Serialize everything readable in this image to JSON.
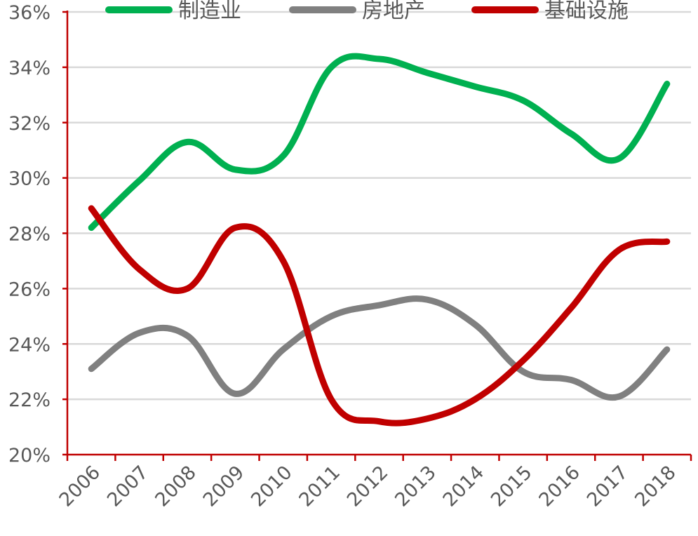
{
  "chart_data": {
    "type": "line",
    "title": "",
    "xlabel": "",
    "ylabel": "",
    "categories": [
      "2006",
      "2007",
      "2008",
      "2009",
      "2010",
      "2011",
      "2012",
      "2013",
      "2014",
      "2015",
      "2016",
      "2017",
      "2018"
    ],
    "ylim": [
      20,
      36
    ],
    "y_ticks": [
      20,
      22,
      24,
      26,
      28,
      30,
      32,
      34,
      36
    ],
    "y_tick_labels": [
      "20%",
      "22%",
      "24%",
      "26%",
      "28%",
      "30%",
      "32%",
      "34%",
      "36%"
    ],
    "y_unit": "%",
    "grid": "horizontal",
    "legend_position": "top",
    "colors": {
      "axis": "#c00000",
      "grid": "#d9d9d9",
      "text": "#595959"
    },
    "series": [
      {
        "name": "制造业",
        "color": "#00b050",
        "values": [
          28.2,
          29.9,
          31.3,
          30.3,
          30.8,
          34.0,
          34.3,
          33.8,
          33.3,
          32.8,
          31.6,
          30.7,
          33.4
        ]
      },
      {
        "name": "房地产",
        "color": "#808080",
        "values": [
          23.1,
          24.4,
          24.3,
          22.2,
          23.8,
          25.0,
          25.4,
          25.6,
          24.7,
          23.0,
          22.7,
          22.1,
          23.8
        ]
      },
      {
        "name": "基础设施",
        "color": "#c00000",
        "values": [
          28.9,
          26.7,
          26.0,
          28.2,
          27.0,
          22.0,
          21.2,
          21.3,
          22.0,
          23.4,
          25.3,
          27.4,
          27.7
        ]
      }
    ]
  }
}
